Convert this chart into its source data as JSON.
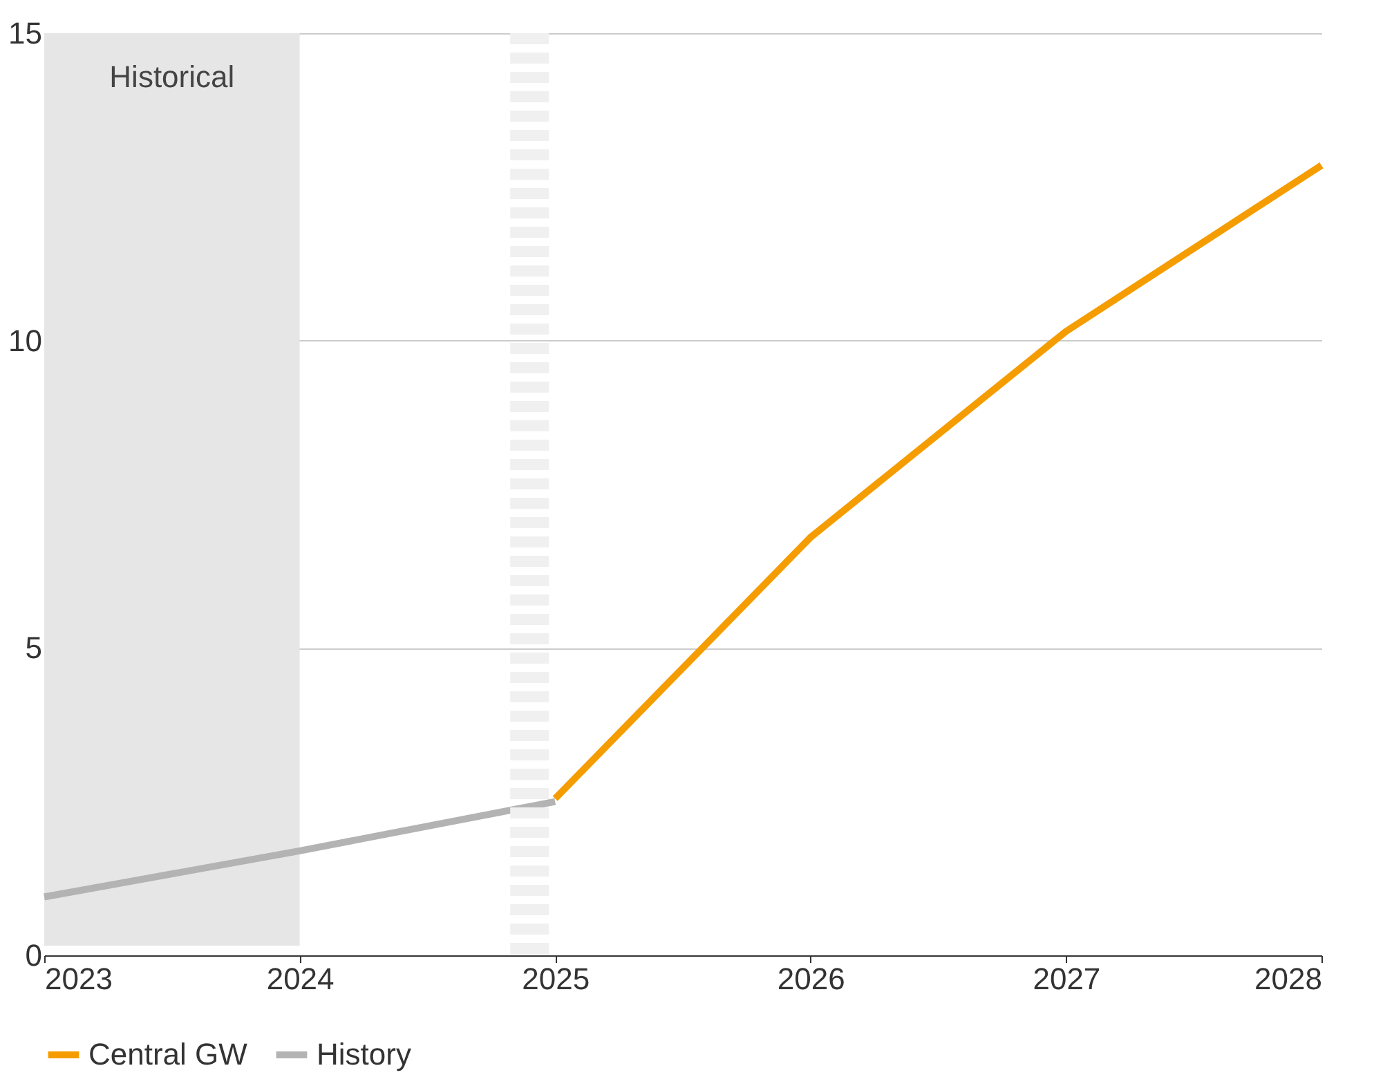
{
  "chart_data": {
    "type": "line",
    "series": [
      {
        "name": "Central GW",
        "color": "#f59d00",
        "x": [
          2025,
          2026,
          2027,
          2028
        ],
        "values": [
          2.55,
          6.8,
          10.15,
          12.85
        ]
      },
      {
        "name": "History",
        "color": "#b3b3b3",
        "x": [
          2023,
          2024,
          2025
        ],
        "values": [
          0.95,
          1.7,
          2.5
        ]
      }
    ],
    "xlim": [
      2023,
      2028
    ],
    "xticks": [
      2023,
      2024,
      2025,
      2026,
      2027,
      2028
    ],
    "ylim": [
      0,
      15
    ],
    "yticks": [
      0,
      5,
      10,
      15
    ],
    "bands": [
      {
        "axis": "x",
        "from": 2023,
        "to": 2024,
        "label": "Historical",
        "color": "#e6e6e6"
      }
    ],
    "ref_lines": [
      {
        "axis": "x",
        "value": 2024.9,
        "color": "#f0f0f0",
        "line_style": "dashed"
      }
    ],
    "grid": "y",
    "legend": "bottom",
    "line_style": "solid",
    "marker": "none"
  }
}
